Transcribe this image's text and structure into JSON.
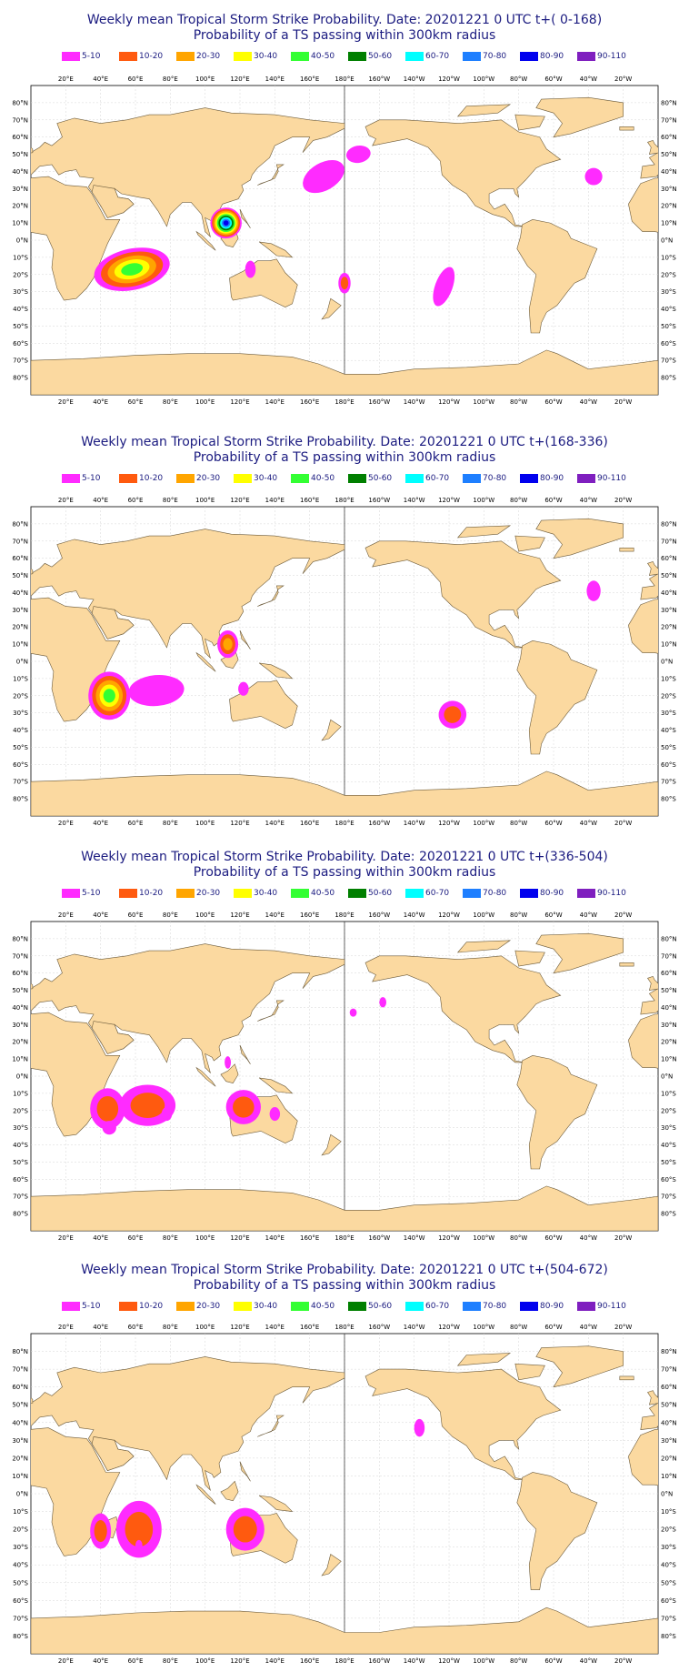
{
  "colors": {
    "land": "#fbd9a0",
    "coast": "#6b5a3a",
    "ocean": "#ffffff",
    "grid": "#d6d6d6",
    "title": "#1b1b80"
  },
  "legend": [
    {
      "label": "5-10",
      "color": "#ff2bff"
    },
    {
      "label": "10-20",
      "color": "#ff5a0f"
    },
    {
      "label": "20-30",
      "color": "#ffa500"
    },
    {
      "label": "30-40",
      "color": "#ffff00"
    },
    {
      "label": "40-50",
      "color": "#33ff33"
    },
    {
      "label": "50-60",
      "color": "#007f00"
    },
    {
      "label": "60-70",
      "color": "#00ffff"
    },
    {
      "label": "70-80",
      "color": "#1e7fff"
    },
    {
      "label": "80-90",
      "color": "#0000ee"
    },
    {
      "label": "90-110",
      "color": "#7f1fbf"
    }
  ],
  "lon_labels": [
    "20°E",
    "40°E",
    "60°E",
    "80°E",
    "100°E",
    "120°E",
    "140°E",
    "160°E",
    "180°E",
    "160°W",
    "140°W",
    "120°W",
    "100°W",
    "80°W",
    "60°W",
    "40°W",
    "20°W"
  ],
  "lat_labels": [
    "80°N",
    "70°N",
    "60°N",
    "50°N",
    "40°N",
    "30°N",
    "20°N",
    "10°N",
    "0°N",
    "10°S",
    "20°S",
    "30°S",
    "40°S",
    "50°S",
    "60°S",
    "70°S",
    "80°S"
  ],
  "panels": [
    {
      "title": "Weekly mean Tropical Storm Strike Probability. Date: 20201221  0 UTC    t+(  0-168)",
      "subtitle": "Probability of a TS passing within  300km radius",
      "features": [
        {
          "lon": 58,
          "lat": -17,
          "rx": 22,
          "ry": 6,
          "rot": -12,
          "level": 4
        },
        {
          "lon": 112,
          "lat": 10,
          "rx": 9,
          "ry": 4.5,
          "rot": 0,
          "level": 8
        },
        {
          "lon": 168,
          "lat": 37,
          "rx": 13,
          "ry": 4,
          "rot": -30,
          "level": 0
        },
        {
          "lon": 188,
          "lat": 50,
          "rx": 7,
          "ry": 2.5,
          "rot": -10,
          "level": 0
        },
        {
          "lon": 126,
          "lat": -17,
          "rx": 3,
          "ry": 2.5,
          "rot": 0,
          "level": 0
        },
        {
          "lon": 180,
          "lat": -25,
          "rx": 3.5,
          "ry": 3,
          "rot": 0,
          "level": 1
        },
        {
          "lon": 237,
          "lat": -27,
          "rx": 5,
          "ry": 6,
          "rot": 20,
          "level": 0
        },
        {
          "lon": 323,
          "lat": 37,
          "rx": 5,
          "ry": 2.5,
          "rot": 0,
          "level": 0
        }
      ]
    },
    {
      "title": "Weekly mean Tropical Storm Strike Probability. Date: 20201221  0 UTC    t+(168-336)",
      "subtitle": "Probability of a TS passing within  300km radius",
      "features": [
        {
          "lon": 45,
          "lat": -20,
          "rx": 12,
          "ry": 7,
          "rot": 0,
          "level": 4
        },
        {
          "lon": 72,
          "lat": -17,
          "rx": 16,
          "ry": 4.5,
          "rot": -5,
          "level": 0
        },
        {
          "lon": 113,
          "lat": 10,
          "rx": 6,
          "ry": 4,
          "rot": 0,
          "level": 2
        },
        {
          "lon": 122,
          "lat": -16,
          "rx": 3,
          "ry": 2,
          "rot": 0,
          "level": 0
        },
        {
          "lon": 242,
          "lat": -31,
          "rx": 8,
          "ry": 4,
          "rot": -35,
          "level": 1
        },
        {
          "lon": 323,
          "lat": 41,
          "rx": 4,
          "ry": 3,
          "rot": 0,
          "level": 0
        }
      ]
    },
    {
      "title": "Weekly mean Tropical Storm Strike Probability. Date: 20201221  0 UTC    t+(336-504)",
      "subtitle": "Probability of a TS passing within  300km radius",
      "features": [
        {
          "lon": 44,
          "lat": -19,
          "rx": 10,
          "ry": 6,
          "rot": 0,
          "level": 1
        },
        {
          "lon": 67,
          "lat": -17,
          "rx": 16,
          "ry": 6,
          "rot": 0,
          "level": 1
        },
        {
          "lon": 45,
          "lat": -30,
          "rx": 4,
          "ry": 2,
          "rot": 0,
          "level": 0
        },
        {
          "lon": 78,
          "lat": -22,
          "rx": 3,
          "ry": 2,
          "rot": 0,
          "level": 0
        },
        {
          "lon": 122,
          "lat": -18,
          "rx": 10,
          "ry": 5,
          "rot": 0,
          "level": 1
        },
        {
          "lon": 140,
          "lat": -22,
          "rx": 3,
          "ry": 2,
          "rot": 0,
          "level": 0
        },
        {
          "lon": 113,
          "lat": 8,
          "rx": 1.8,
          "ry": 1.8,
          "rot": 0,
          "level": 0
        },
        {
          "lon": 202,
          "lat": 43,
          "rx": 2,
          "ry": 1.5,
          "rot": 0,
          "level": 0
        },
        {
          "lon": 185,
          "lat": 37,
          "rx": 2,
          "ry": 1.2,
          "rot": 0,
          "level": 0
        }
      ]
    },
    {
      "title": "Weekly mean Tropical Storm Strike Probability. Date: 20201221  0 UTC    t+(504-672)",
      "subtitle": "Probability of a TS passing within  300km radius",
      "features": [
        {
          "lon": 40,
          "lat": -21,
          "rx": 6,
          "ry": 5,
          "rot": 0,
          "level": 1
        },
        {
          "lon": 62,
          "lat": -20,
          "rx": 13,
          "ry": 8,
          "rot": 0,
          "level": 1
        },
        {
          "lon": 62,
          "lat": -29,
          "rx": 2,
          "ry": 1.5,
          "rot": 0,
          "level": 0
        },
        {
          "lon": 123,
          "lat": -20,
          "rx": 11,
          "ry": 6,
          "rot": 0,
          "level": 1
        },
        {
          "lon": 223,
          "lat": 37,
          "rx": 3,
          "ry": 2.5,
          "rot": 0,
          "level": 0
        }
      ]
    }
  ]
}
